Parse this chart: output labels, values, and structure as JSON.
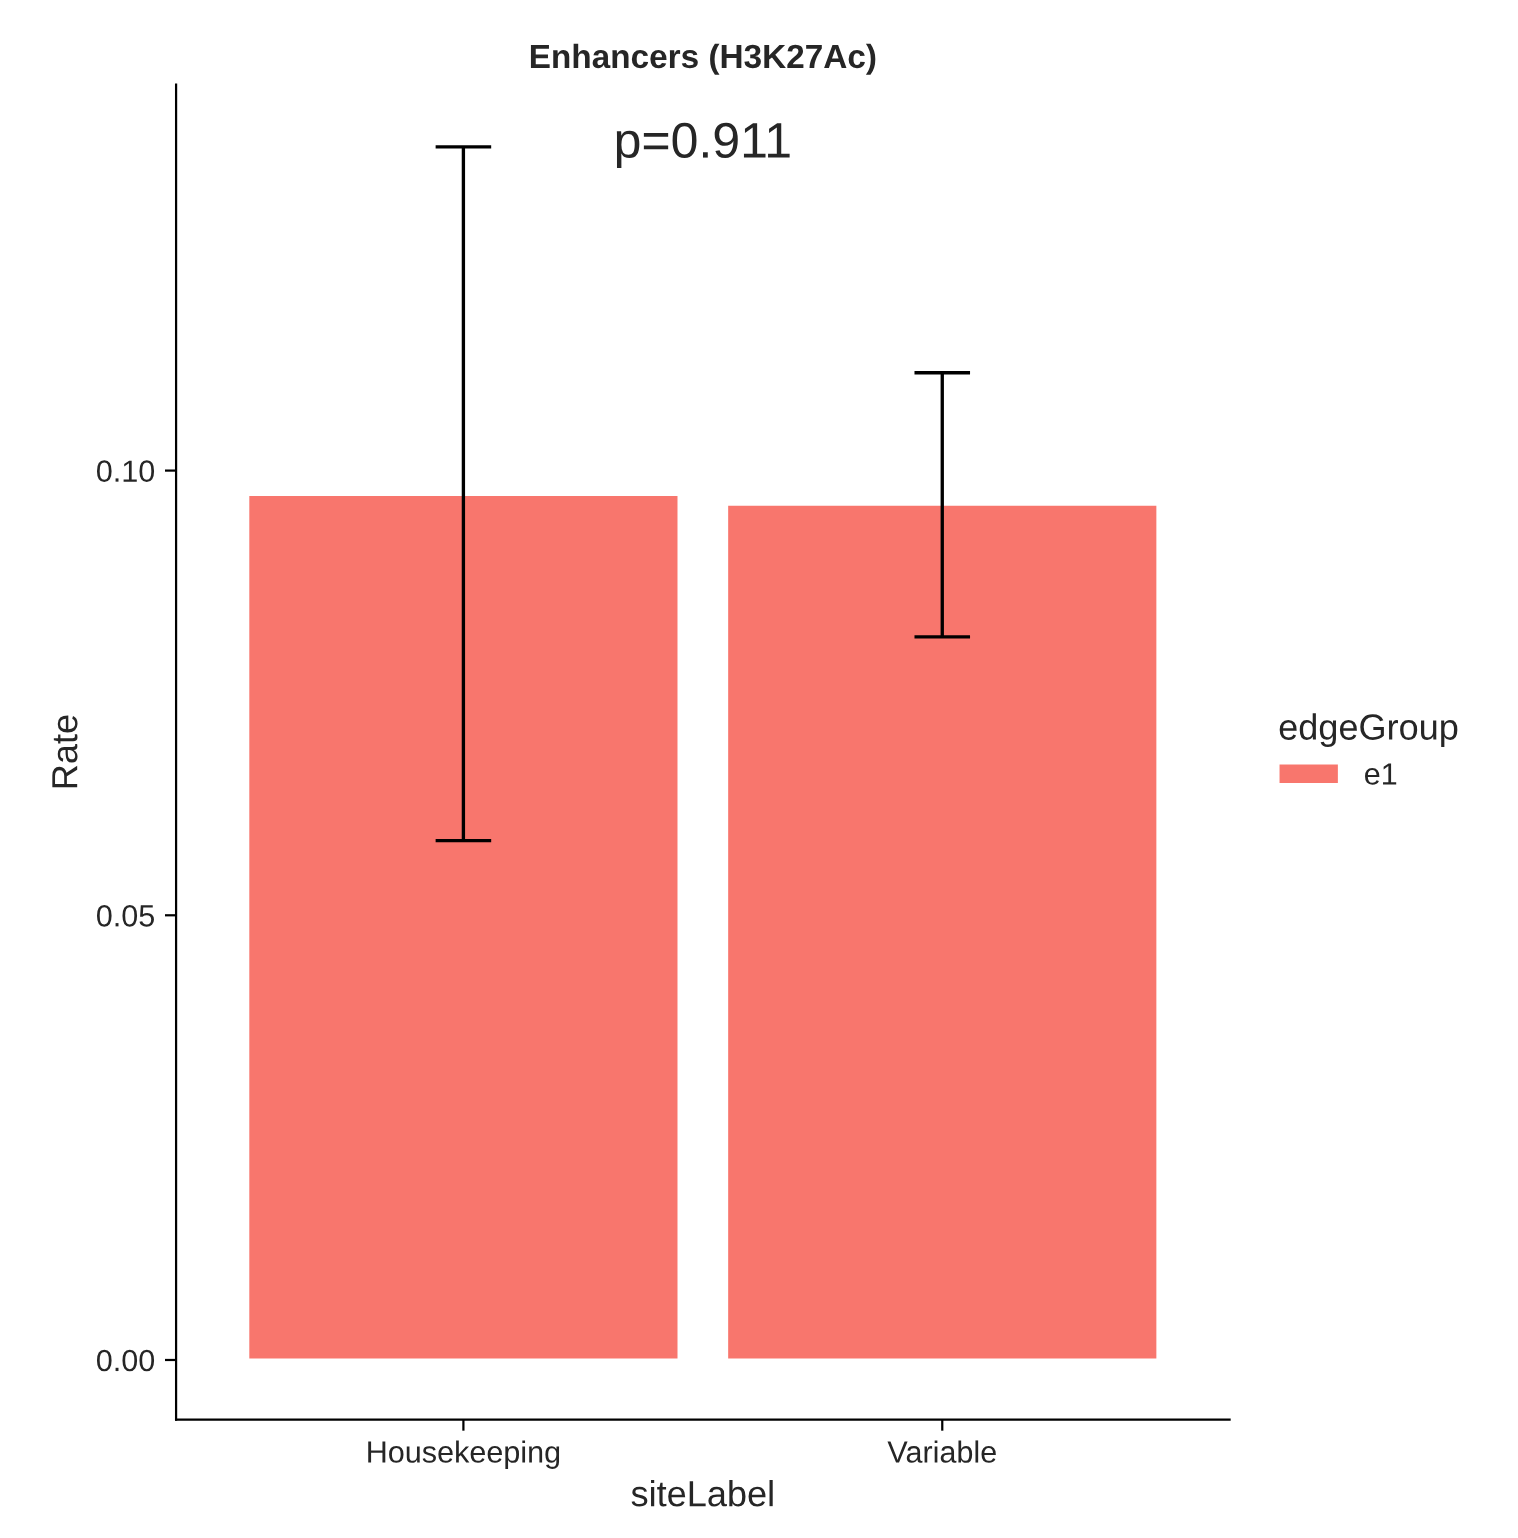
{
  "chart_data": {
    "type": "bar",
    "title": "Enhancers (H3K27Ac)",
    "xlabel": "siteLabel",
    "ylabel": "Rate",
    "legend_title": "edgeGroup",
    "categories": [
      "Housekeeping",
      "Variable"
    ],
    "series": [
      {
        "name": "e1",
        "color": "#f8766d",
        "values": [
          0.0973,
          0.0962
        ],
        "errors": [
          [
            0.0584,
            0.1364
          ],
          [
            0.0813,
            0.111
          ]
        ]
      }
    ],
    "ylim": [
      -0.0067,
      0.1434
    ],
    "yticks": [
      {
        "value": 0,
        "label": "0.00"
      },
      {
        "value": 0.05,
        "label": "0.05"
      },
      {
        "value": 0.1,
        "label": "0.10"
      }
    ],
    "annotations": [
      "p=0.911"
    ],
    "legend": "right",
    "grid": false
  }
}
